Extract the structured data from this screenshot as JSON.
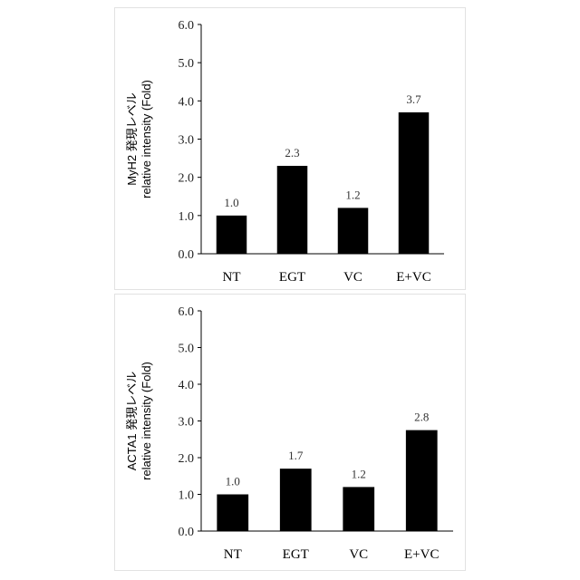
{
  "chart_data": [
    {
      "type": "bar",
      "categories": [
        "NT",
        "EGT",
        "VC",
        "E+VC"
      ],
      "values": [
        1.0,
        2.3,
        1.2,
        3.7
      ],
      "data_labels": [
        "1.0",
        "2.3",
        "1.2",
        "3.7"
      ],
      "ylabel_line1": "MyH2 発現レベル",
      "ylabel_line2": "relative intensity (Fold)",
      "ylim": [
        0,
        6.0
      ],
      "yticks": [
        "0.0",
        "1.0",
        "2.0",
        "3.0",
        "4.0",
        "5.0",
        "6.0"
      ],
      "bar_color": "#000000",
      "grid": false
    },
    {
      "type": "bar",
      "categories": [
        "NT",
        "EGT",
        "VC",
        "E+VC"
      ],
      "values": [
        1.0,
        1.7,
        1.2,
        2.75
      ],
      "data_labels": [
        "1.0",
        "1.7",
        "1.2",
        "2.8"
      ],
      "ylabel_line1": "ACTA1 発現レベル",
      "ylabel_line2": "relative intensity (Fold)",
      "ylim": [
        0,
        6.0
      ],
      "yticks": [
        "0.0",
        "1.0",
        "2.0",
        "3.0",
        "4.0",
        "5.0",
        "6.0"
      ],
      "bar_color": "#000000",
      "grid": false
    }
  ]
}
